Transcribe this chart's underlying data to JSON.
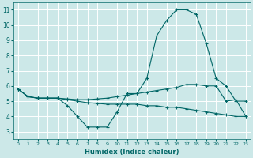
{
  "xlabel": "Humidex (Indice chaleur)",
  "xlim": [
    -0.5,
    23.5
  ],
  "ylim": [
    2.5,
    11.5
  ],
  "yticks": [
    3,
    4,
    5,
    6,
    7,
    8,
    9,
    10,
    11
  ],
  "xticks": [
    0,
    1,
    2,
    3,
    4,
    5,
    6,
    7,
    8,
    9,
    10,
    11,
    12,
    13,
    14,
    15,
    16,
    17,
    18,
    19,
    20,
    21,
    22,
    23
  ],
  "bg_color": "#cce8e8",
  "grid_color": "#ffffff",
  "line_color": "#006666",
  "line1_x": [
    0,
    1,
    2,
    3,
    4,
    5,
    6,
    7,
    8,
    9,
    10,
    11,
    12,
    13,
    14,
    15,
    16,
    17,
    18,
    19,
    20,
    21,
    22,
    23
  ],
  "line1_y": [
    5.8,
    5.3,
    5.2,
    5.2,
    5.2,
    4.7,
    4.0,
    3.3,
    3.3,
    3.3,
    4.3,
    5.5,
    5.5,
    6.5,
    9.3,
    10.3,
    11.0,
    11.0,
    10.7,
    8.8,
    6.5,
    6.0,
    5.0,
    5.0
  ],
  "line2_x": [
    0,
    1,
    2,
    3,
    4,
    5,
    6,
    7,
    8,
    9,
    10,
    11,
    12,
    13,
    14,
    15,
    16,
    17,
    18,
    19,
    20,
    21,
    22,
    23
  ],
  "line2_y": [
    5.8,
    5.3,
    5.2,
    5.2,
    5.2,
    5.15,
    5.1,
    5.1,
    5.15,
    5.2,
    5.3,
    5.4,
    5.5,
    5.6,
    5.7,
    5.8,
    5.9,
    6.1,
    6.1,
    6.0,
    6.0,
    5.0,
    5.1,
    4.0
  ],
  "line3_x": [
    0,
    1,
    2,
    3,
    4,
    5,
    6,
    7,
    8,
    9,
    10,
    11,
    12,
    13,
    14,
    15,
    16,
    17,
    18,
    19,
    20,
    21,
    22,
    23
  ],
  "line3_y": [
    5.8,
    5.3,
    5.2,
    5.2,
    5.2,
    5.1,
    5.0,
    4.9,
    4.85,
    4.8,
    4.8,
    4.8,
    4.8,
    4.7,
    4.7,
    4.6,
    4.6,
    4.5,
    4.4,
    4.3,
    4.2,
    4.1,
    4.0,
    4.0
  ]
}
